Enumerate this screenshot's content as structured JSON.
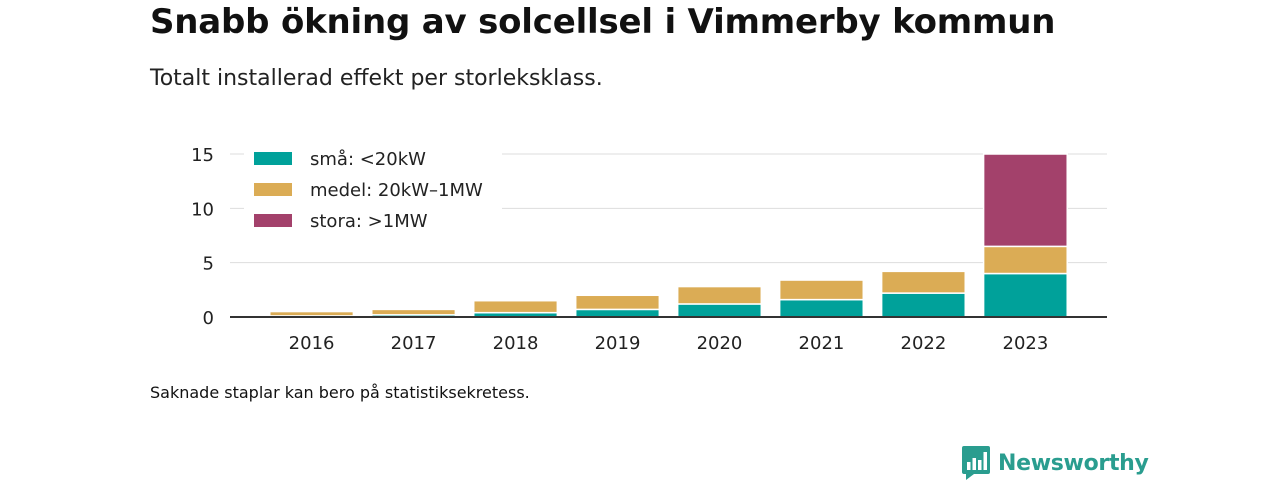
{
  "header": {
    "title": "Snabb ökning av solcellsel i Vimmerby kommun",
    "subtitle": "Totalt installerad effekt per storleksklass."
  },
  "footer": {
    "note": "Saknade staplar kan bero på statistiksekretess.",
    "brand": "Newsworthy"
  },
  "colors": {
    "small": "#00a19a",
    "medium": "#dbac55",
    "large": "#a3416b",
    "brand": "#2a9d8f"
  },
  "chart_data": {
    "type": "bar",
    "stacked": true,
    "categories": [
      "2016",
      "2017",
      "2018",
      "2019",
      "2020",
      "2021",
      "2022",
      "2023"
    ],
    "series": [
      {
        "name": "små: <20kW",
        "values": [
          0.1,
          0.2,
          0.4,
          0.7,
          1.2,
          1.6,
          2.2,
          4.0
        ]
      },
      {
        "name": "medel: 20kW–1MW",
        "values": [
          0.4,
          0.5,
          1.1,
          1.3,
          1.6,
          1.8,
          2.0,
          2.5
        ]
      },
      {
        "name": "stora: >1MW",
        "values": [
          0,
          0,
          0,
          0,
          0,
          0,
          0,
          8.5
        ]
      }
    ],
    "ylim": [
      0,
      15
    ],
    "yticks": [
      0,
      5,
      10,
      15
    ],
    "grid": true,
    "legend": "top-left"
  }
}
